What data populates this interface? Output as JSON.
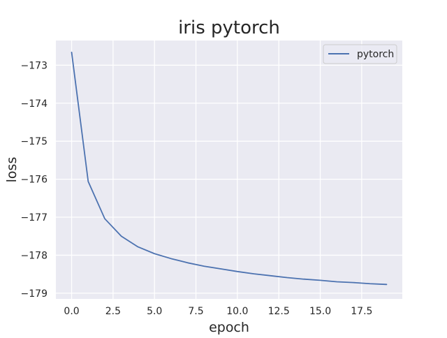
{
  "chart_data": {
    "type": "line",
    "title": "iris pytorch",
    "xlabel": "epoch",
    "ylabel": "loss",
    "xlim": [
      -0.95,
      19.95
    ],
    "ylim": [
      -179.15,
      -172.35
    ],
    "x_ticks": [
      0.0,
      2.5,
      5.0,
      7.5,
      10.0,
      12.5,
      15.0,
      17.5
    ],
    "x_tick_labels": [
      "0.0",
      "2.5",
      "5.0",
      "7.5",
      "10.0",
      "12.5",
      "15.0",
      "17.5"
    ],
    "y_ticks": [
      -173,
      -174,
      -175,
      -176,
      -177,
      -178,
      -179
    ],
    "y_tick_labels": [
      "−173",
      "−174",
      "−175",
      "−176",
      "−177",
      "−178",
      "−179"
    ],
    "grid": true,
    "legend_position": "upper-right",
    "series": [
      {
        "name": "pytorch",
        "color": "#4c72b0",
        "x": [
          0,
          1,
          2,
          3,
          4,
          5,
          6,
          7,
          8,
          9,
          10,
          11,
          12,
          13,
          14,
          15,
          16,
          17,
          18,
          19
        ],
        "y": [
          -172.66,
          -176.06,
          -177.04,
          -177.5,
          -177.78,
          -177.96,
          -178.09,
          -178.2,
          -178.29,
          -178.36,
          -178.43,
          -178.49,
          -178.54,
          -178.59,
          -178.63,
          -178.66,
          -178.7,
          -178.72,
          -178.75,
          -178.77
        ]
      }
    ]
  },
  "colors": {
    "plot_background": "#eaeaf2",
    "grid": "#ffffff",
    "text": "#262626"
  }
}
